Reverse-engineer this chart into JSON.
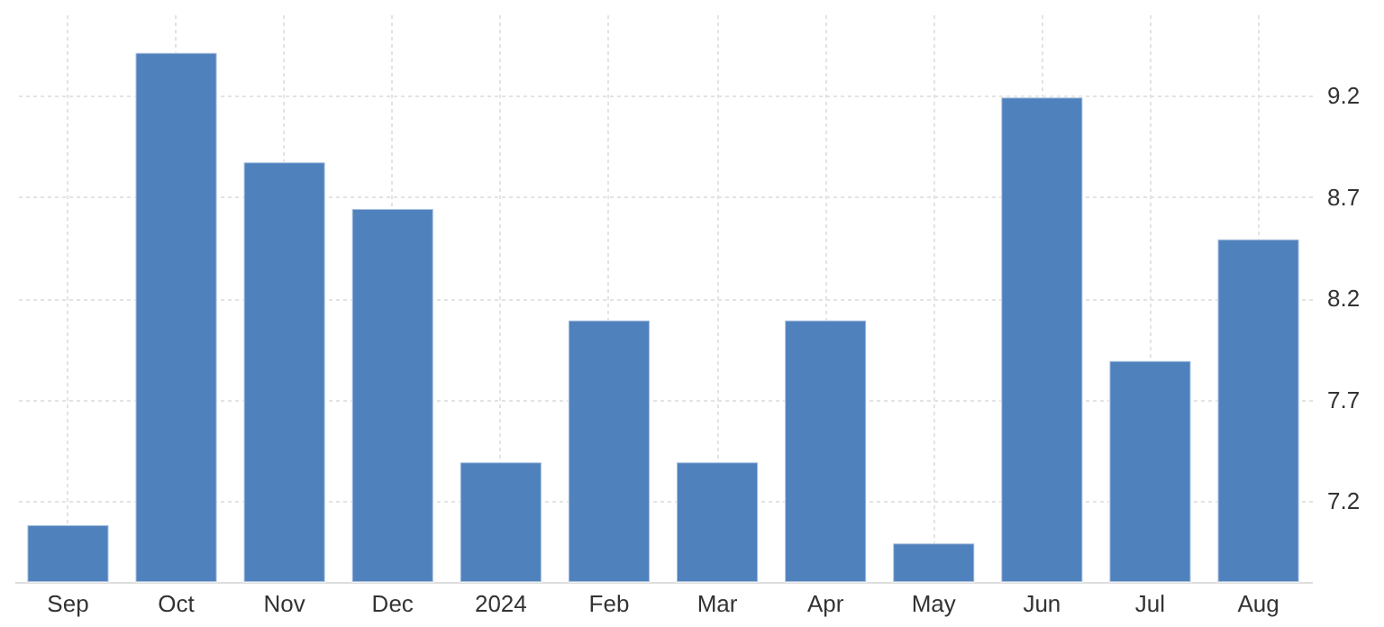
{
  "chart_data": {
    "type": "bar",
    "categories": [
      "Sep",
      "Oct",
      "Nov",
      "Dec",
      "2024",
      "Feb",
      "Mar",
      "Apr",
      "May",
      "Jun",
      "Jul",
      "Aug"
    ],
    "values": [
      7.08,
      9.41,
      8.87,
      8.64,
      7.39,
      8.09,
      7.39,
      8.09,
      6.99,
      9.19,
      7.89,
      8.49
    ],
    "color": "#4f81bd",
    "ylim": [
      6.8,
      9.6
    ],
    "yticks": [
      7.2,
      7.7,
      8.2,
      8.7,
      9.2
    ],
    "grid": true
  }
}
